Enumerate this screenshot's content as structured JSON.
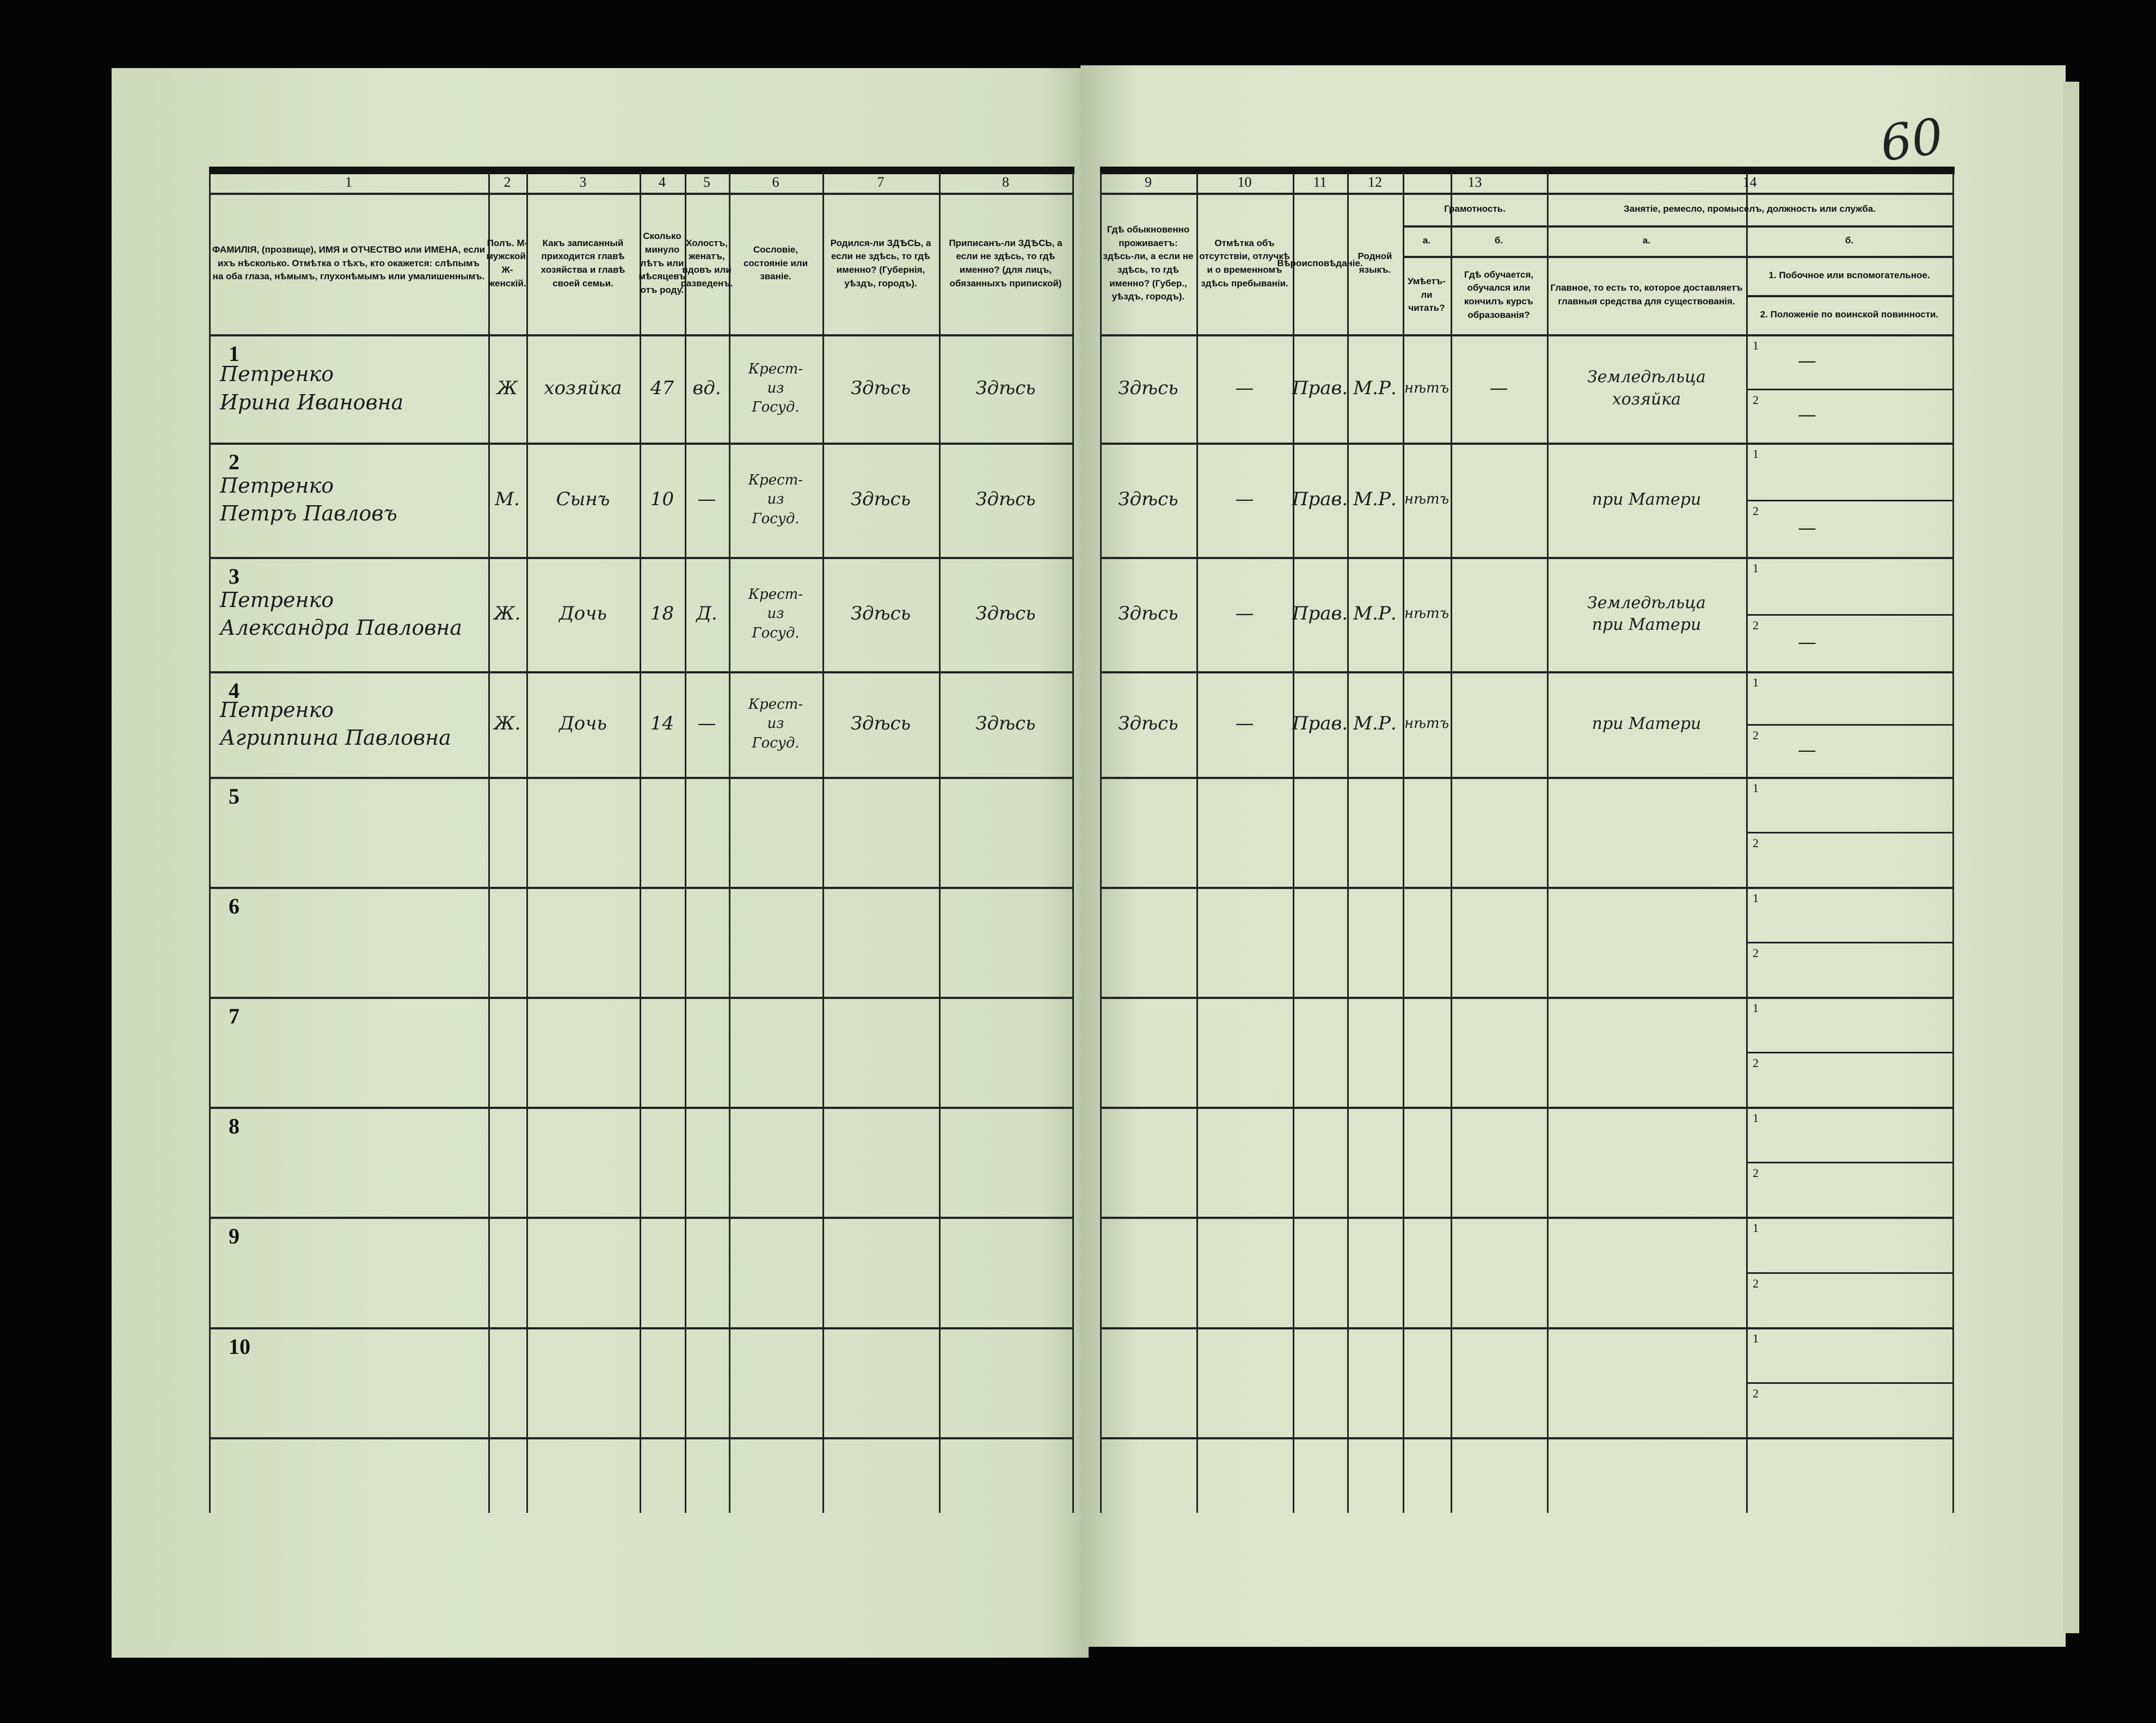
{
  "sheet_number": "60",
  "columns": {
    "numbers": [
      "1",
      "2",
      "3",
      "4",
      "5",
      "6",
      "7",
      "8",
      "9",
      "10",
      "11",
      "12",
      "13",
      "14"
    ],
    "c1": "ФАМИЛІЯ, (прозвище), ИМЯ и ОТЧЕСТВО или ИМЕНА, если ихъ нѣсколько. Отмѣтка о тѣхъ, кто окажется: слѣпымъ на оба глаза, нѣмымъ, глухонѣмымъ или умалишеннымъ.",
    "c2": "Полъ. М-мужской. Ж-женскій.",
    "c3": "Какъ записанный приходится главѣ хозяйства и главѣ своей семьи.",
    "c4": "Сколько минуло лѣтъ или мѣсяцевъ отъ роду.",
    "c5": "Холостъ, женатъ, вдовъ или разведенъ.",
    "c6": "Сословіе, состояніе или званіе.",
    "c7": "Родился-ли ЗДѢСЬ, а если не здѣсь, то гдѣ именно? (Губернія, уѣздъ, городъ).",
    "c8": "Приписанъ-ли ЗДѢСЬ, а если не здѣсь, то гдѣ именно? (для лицъ, обязанныхъ припиской)",
    "c9": "Гдѣ обыкновенно проживаетъ: здѣсь-ли, а если не здѣсь, то гдѣ именно? (Губер., уѣздъ, городъ).",
    "c10": "Отмѣтка объ отсутствіи, отлучкѣ и о временномъ здѣсь пребываніи.",
    "c11": "Вѣроисповѣданіе.",
    "c12": "Родной языкъ.",
    "c13_title": "Грамотность.",
    "c13a_letter": "а.",
    "c13a": "Умѣетъ-ли читать?",
    "c13b_letter": "б.",
    "c13b": "Гдѣ обучается, обучался или кончилъ курсъ образованія?",
    "c14_title": "Занятіе, ремесло, промыселъ, должность или служба.",
    "c14a_letter": "а.",
    "c14a": "Главное, то есть то, которое доставляетъ главныя средства для существованія.",
    "c14b_letter": "б.",
    "c14b1": "1. Побочное или вспомогательное.",
    "c14b2": "2. Положеніе по воинской повинности."
  },
  "sub_labels": [
    "1",
    "2"
  ],
  "rows": [
    {
      "num": "1",
      "name": "Петренко\nИрина Ивановна",
      "sex": "Ж",
      "relation": "хозяйка",
      "age": "47",
      "marital": "вд.",
      "estate": "Крест-\nиз\nГосуд.",
      "born": "Здѣсь",
      "registered": "Здѣсь",
      "residence": "Здѣсь",
      "absence": "—",
      "religion": "Прав.",
      "language": "М.Р.",
      "literate": "нѣтъ",
      "school": "—",
      "occupation": "Земледѣльца\nхозяйка",
      "side1": "—",
      "side2": "—"
    },
    {
      "num": "2",
      "name": "Петренко\nПетръ Павловъ",
      "sex": "М.",
      "relation": "Сынъ",
      "age": "10",
      "marital": "—",
      "estate": "Крест-\nиз\nГосуд.",
      "born": "Здѣсь",
      "registered": "Здѣсь",
      "residence": "Здѣсь",
      "absence": "—",
      "religion": "Прав.",
      "language": "М.Р.",
      "literate": "нѣтъ",
      "school": "",
      "occupation": "при Матери",
      "side1": "",
      "side2": "—"
    },
    {
      "num": "3",
      "name": "Петренко\nАлександра Павловна",
      "sex": "Ж.",
      "relation": "Дочь",
      "age": "18",
      "marital": "Д.",
      "estate": "Крест-\nиз\nГосуд.",
      "born": "Здѣсь",
      "registered": "Здѣсь",
      "residence": "Здѣсь",
      "absence": "—",
      "religion": "Прав.",
      "language": "М.Р.",
      "literate": "нѣтъ",
      "school": "",
      "occupation": "Земледѣльца\nпри Матери",
      "side1": "",
      "side2": "—"
    },
    {
      "num": "4",
      "name": "Петренко\nАгриппина Павловна",
      "sex": "Ж.",
      "relation": "Дочь",
      "age": "14",
      "marital": "—",
      "estate": "Крест-\nиз\nГосуд.",
      "born": "Здѣсь",
      "registered": "Здѣсь",
      "residence": "Здѣсь",
      "absence": "—",
      "religion": "Прав.",
      "language": "М.Р.",
      "literate": "нѣтъ",
      "school": "",
      "occupation": "при Матери",
      "side1": "",
      "side2": "—"
    },
    {
      "num": "5"
    },
    {
      "num": "6"
    },
    {
      "num": "7"
    },
    {
      "num": "8"
    },
    {
      "num": "9"
    },
    {
      "num": "10"
    }
  ]
}
